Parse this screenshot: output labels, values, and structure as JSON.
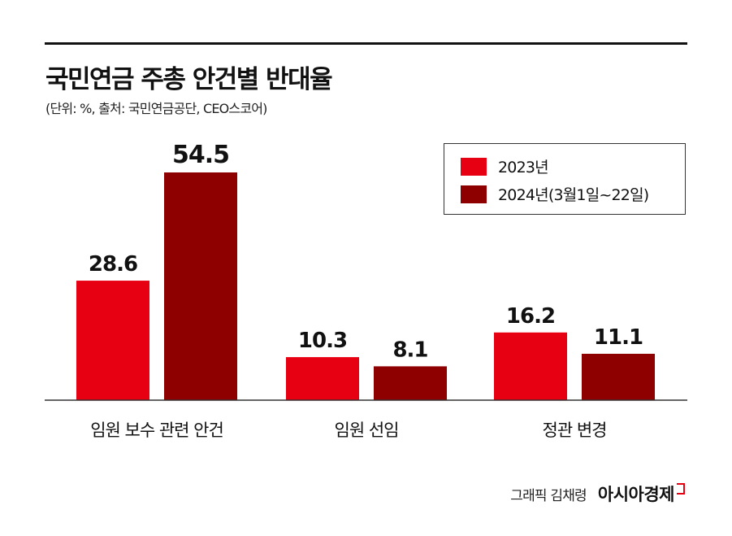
{
  "title": "국민연금 주총 안건별 반대율",
  "subtitle": "(단위: %, 출처: 국민연금공단, CEO스코어)",
  "credit": "그래픽 김채령",
  "logo": "아시아경제",
  "chart_data": {
    "type": "bar",
    "categories": [
      "임원 보수 관련 안건",
      "임원 선임",
      "정관 변경"
    ],
    "series": [
      {
        "name": "2023년",
        "values": [
          28.6,
          10.3,
          16.2
        ],
        "color": "#e60012"
      },
      {
        "name": "2024년(3월1일~22일)",
        "values": [
          54.5,
          8.1,
          11.1
        ],
        "color": "#8e0000"
      }
    ],
    "ylim": [
      0,
      54.5
    ],
    "grid": false,
    "legend": "top-right",
    "data_labels": [
      "28.6",
      "54.5",
      "10.3",
      "8.1",
      "16.2",
      "11.1"
    ]
  }
}
